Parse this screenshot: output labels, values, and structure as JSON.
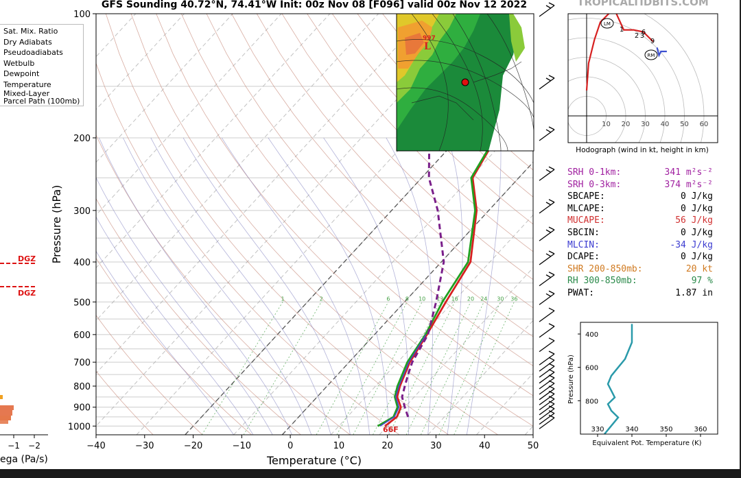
{
  "header": {
    "title": "GFS Sounding 40.72°N, 74.41°W Init: 00z Nov 08 [F096] valid 00z Nov 12 2022",
    "watermark": "TROPICALTIDBITS.COM"
  },
  "legend": {
    "items": [
      "Sat. Mix. Ratio",
      "Dry Adiabats",
      "Pseudoadiabats",
      "Wetbulb",
      "Dewpoint",
      "Temperature",
      "Mixed-Layer",
      "Parcel Path (100mb)"
    ]
  },
  "left_panel": {
    "dgz_label": "DGZ",
    "xticks": [
      "−1",
      "−2"
    ],
    "xlabel": "ega (Pa/s)"
  },
  "chart_data": [
    {
      "type": "line",
      "name": "skew-t",
      "xlabel": "Temperature (°C)",
      "ylabel": "Pressure (hPa)",
      "xlim": [
        -40,
        50
      ],
      "ylim": [
        1050,
        100
      ],
      "log_y": true,
      "xticks": [
        "−40",
        "−30",
        "−20",
        "−10",
        "0",
        "10",
        "20",
        "30",
        "40",
        "50"
      ],
      "yticks": [
        "100",
        "200",
        "300",
        "400",
        "500",
        "600",
        "700",
        "800",
        "900",
        "1000"
      ],
      "mixing_ratio_labels": [
        "1",
        "2",
        "6",
        "8",
        "10",
        "13",
        "16",
        "20",
        "24",
        "30",
        "36"
      ],
      "surface_label": "66F",
      "surface_dewpoint_label": "66",
      "series": [
        {
          "name": "Temperature",
          "color": "#d62020",
          "x": [
            19.5,
            20.2,
            19.2,
            16.5,
            15.0,
            12.5,
            10.8,
            8.5,
            6.0,
            -2.5,
            -9.5,
            -12.3,
            -8.0,
            -8.0
          ],
          "y": [
            1000,
            950,
            900,
            850,
            800,
            700,
            600,
            500,
            400,
            300,
            250,
            200,
            150,
            100
          ]
        },
        {
          "name": "Dewpoint",
          "color": "#20a020",
          "x": [
            18.0,
            19.5,
            18.5,
            16.0,
            14.5,
            12.0,
            10.5,
            7.8,
            5.5,
            -2.8,
            -9.8,
            -12.5,
            -26.5,
            -20.0
          ],
          "y": [
            1000,
            950,
            900,
            850,
            800,
            700,
            600,
            500,
            400,
            300,
            250,
            200,
            150,
            100
          ]
        },
        {
          "name": "Wetbulb",
          "color": "#4444cc",
          "x": [
            18.5,
            19.7,
            18.8,
            16.2,
            14.8,
            12.3,
            10.6
          ],
          "y": [
            1000,
            950,
            900,
            850,
            800,
            700,
            600
          ]
        },
        {
          "name": "Mixed-Layer Parcel Path (100mb)",
          "color": "#7a1f8a",
          "x": [
            22.5,
            20.0,
            17.5,
            16.0,
            14.5,
            13.0,
            11.0,
            6.5,
            0.5,
            -10.5,
            -18.5,
            -26.0,
            -34.0,
            -41.0
          ],
          "y": [
            950,
            900,
            850,
            800,
            750,
            700,
            600,
            500,
            400,
            300,
            250,
            200,
            150,
            100
          ]
        }
      ]
    },
    {
      "type": "line",
      "name": "hodograph",
      "xlabel": "Hodograph (wind in kt, height in km)",
      "xticks": [
        "10",
        "20",
        "30",
        "40",
        "50",
        "60"
      ],
      "points": [
        "1",
        "2",
        "3",
        "6",
        "9"
      ],
      "markers": [
        "LM",
        "RM"
      ],
      "series": [
        {
          "name": "0-3km",
          "color": "#d62020",
          "x": [
            0,
            1,
            4,
            7,
            11,
            14,
            19,
            24,
            29,
            32,
            34
          ],
          "y": [
            13,
            27,
            39,
            48,
            52,
            55,
            44,
            44,
            43,
            40,
            38
          ]
        },
        {
          "name": "upper",
          "color": "#3b4fd0",
          "x": [
            36,
            37,
            38,
            41
          ],
          "y": [
            35,
            31,
            33,
            33
          ]
        }
      ]
    },
    {
      "type": "line",
      "name": "theta-e",
      "xlabel": "Equivalent Pot. Temperature (K)",
      "ylabel": "Pressure (hPa)",
      "xlim": [
        325,
        365
      ],
      "ylim": [
        1000,
        330
      ],
      "xticks": [
        "330",
        "340",
        "350",
        "360"
      ],
      "yticks": [
        "400",
        "600",
        "800"
      ],
      "series": [
        {
          "name": "Equivalent Pot. Temperature",
          "color": "#2a9aaa",
          "x": [
            332,
            334,
            336,
            334,
            333,
            335,
            334,
            333,
            334,
            336,
            338,
            339,
            340,
            340,
            340
          ],
          "y": [
            1000,
            950,
            900,
            860,
            820,
            780,
            740,
            700,
            650,
            600,
            550,
            500,
            450,
            400,
            340
          ]
        }
      ]
    }
  ],
  "stats": [
    {
      "label": "SRH 0-1km:",
      "value": "341 m²s⁻²",
      "color": "#a020a0"
    },
    {
      "label": "SRH 0-3km:",
      "value": "374 m²s⁻²",
      "color": "#a020a0"
    },
    {
      "label": "SBCAPE:",
      "value": "0 J/kg",
      "color": "#000000"
    },
    {
      "label": "MLCAPE:",
      "value": "0 J/kg",
      "color": "#000000"
    },
    {
      "label": "MUCAPE:",
      "value": "56 J/kg",
      "color": "#d03030"
    },
    {
      "label": "SBCIN:",
      "value": "0 J/kg",
      "color": "#000000"
    },
    {
      "label": "MLCIN:",
      "value": "-34 J/kg",
      "color": "#3b3bd0"
    },
    {
      "label": "DCAPE:",
      "value": "0 J/kg",
      "color": "#000000"
    },
    {
      "label": "SHR 200-850mb:",
      "value": "20 kt",
      "color": "#d07a20"
    },
    {
      "label": "RH 300-850mb:",
      "value": "97 %",
      "color": "#2a8a4a"
    },
    {
      "label": "PWAT:",
      "value": "1.87 in",
      "color": "#000000"
    }
  ],
  "map_inset": {
    "low_label": "L",
    "pressure_label": "997"
  }
}
